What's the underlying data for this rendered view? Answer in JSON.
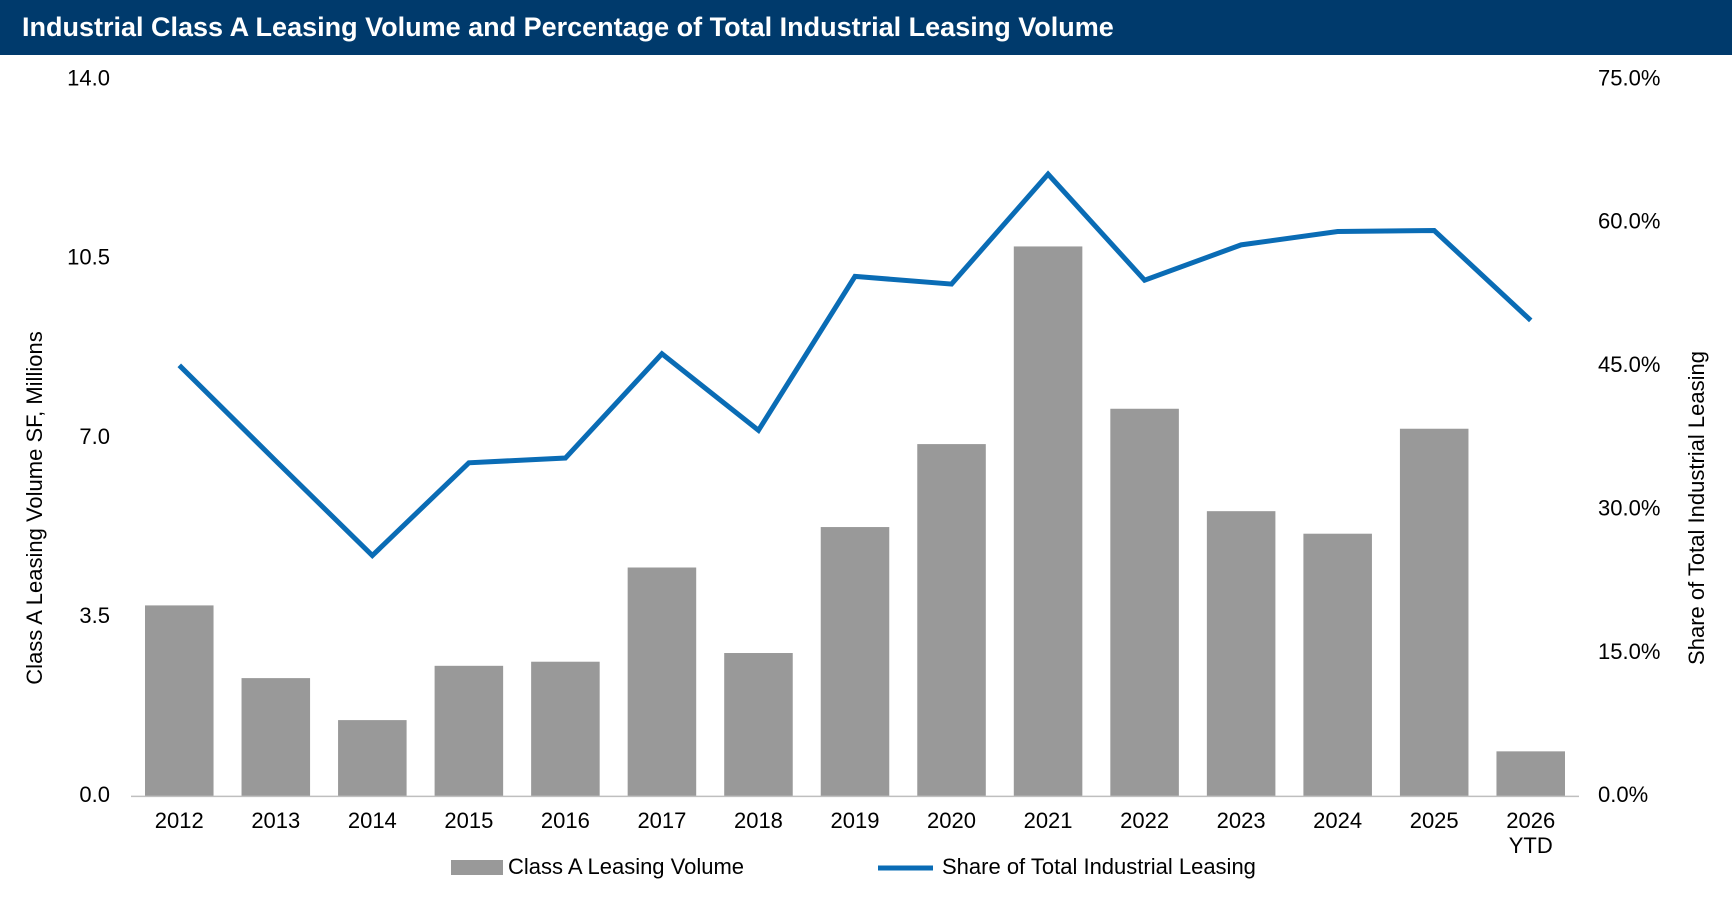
{
  "chart_data": {
    "type": "bar",
    "title": "Industrial Class A Leasing Volume and Percentage of Total Industrial Leasing Volume",
    "categories": [
      "2012",
      "2013",
      "2014",
      "2015",
      "2016",
      "2017",
      "2018",
      "2019",
      "2020",
      "2021",
      "2022",
      "2023",
      "2024",
      "2025",
      "2026\nYTD"
    ],
    "series": [
      {
        "name": "Class A Leasing Volume",
        "type": "bar",
        "color": "#999999",
        "values": [
          3.73,
          2.31,
          1.49,
          2.55,
          2.63,
          4.47,
          2.8,
          5.26,
          6.88,
          10.74,
          7.57,
          5.57,
          5.13,
          7.18,
          0.88
        ]
      },
      {
        "name": "Share of Total Industrial Leasing",
        "type": "line",
        "axis": "y2",
        "color": "#0a6cb5",
        "values": [
          45.1,
          35.1,
          25.2,
          34.9,
          35.4,
          46.3,
          38.3,
          54.4,
          53.6,
          65.1,
          54.0,
          57.7,
          59.1,
          59.2,
          49.8
        ]
      }
    ],
    "ylabel": "Class A Leasing Volume SF, Millions",
    "y2label": "Share of Total Industrial Leasing",
    "ylim": [
      0,
      14
    ],
    "yticks": [
      {
        "value": 0,
        "label": "0.0"
      },
      3.5,
      {
        "value": 7,
        "label": "7.0"
      },
      10.5,
      {
        "value": 14,
        "label": "14.0"
      }
    ],
    "y2lim": [
      0,
      75
    ],
    "y2ticks": [
      {
        "value": 0,
        "label": "0.0%"
      },
      {
        "value": 15,
        "label": "15.0%"
      },
      {
        "value": 30,
        "label": "30.0%"
      },
      {
        "value": 45,
        "label": "45.0%"
      },
      {
        "value": 60,
        "label": "60.0%"
      },
      {
        "value": 75,
        "label": "75.0%"
      }
    ],
    "grid": false,
    "legend": "bottom"
  }
}
